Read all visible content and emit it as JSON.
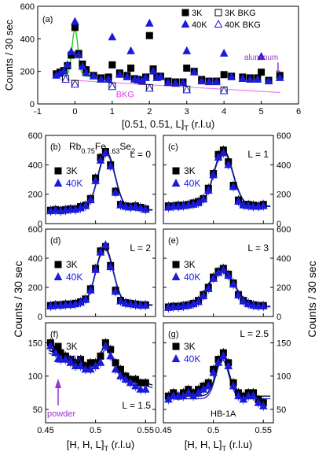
{
  "chart_data": [
    {
      "panel": "a",
      "type": "scatter",
      "panel_label": "(a)",
      "xlabel": "[0.51, 0.51, L]",
      "xlabel_sub": "T",
      "xlabel_unit": " (r.l.u)",
      "ylabel": "Counts / 30 sec",
      "xlim": [
        -1,
        6
      ],
      "ylim": [
        0,
        600
      ],
      "xticks": [
        -1,
        0,
        1,
        2,
        3,
        4,
        5,
        6
      ],
      "yticks": [
        0,
        200,
        400,
        600
      ],
      "series": [
        {
          "name": "3K",
          "marker": "square-filled",
          "color": "#000000",
          "x": [
            -0.5,
            -0.4,
            -0.3,
            -0.2,
            -0.1,
            0.0,
            0.1,
            0.2,
            0.3,
            0.5,
            0.7,
            0.9,
            1.0,
            1.2,
            1.4,
            1.5,
            1.6,
            1.7,
            1.8,
            1.9,
            2.0,
            2.1,
            2.2,
            2.3,
            2.5,
            2.7,
            2.9,
            3.0,
            3.2,
            3.4,
            3.6,
            3.8,
            4.0,
            4.2,
            4.5,
            4.7,
            4.9,
            5.0,
            5.2,
            5.5
          ],
          "y": [
            185,
            195,
            205,
            235,
            300,
            470,
            310,
            245,
            210,
            175,
            160,
            165,
            240,
            190,
            175,
            220,
            155,
            150,
            140,
            165,
            420,
            215,
            170,
            170,
            140,
            135,
            135,
            220,
            200,
            150,
            140,
            140,
            180,
            170,
            165,
            160,
            160,
            195,
            145,
            175
          ]
        },
        {
          "name": "40K",
          "marker": "triangle-filled",
          "color": "#1a1adc",
          "x": [
            -0.5,
            -0.4,
            -0.3,
            -0.2,
            -0.1,
            0.0,
            0.1,
            0.2,
            0.3,
            0.5,
            0.7,
            0.9,
            1.0,
            1.2,
            1.4,
            1.5,
            1.6,
            1.7,
            1.8,
            1.9,
            2.0,
            2.1,
            2.2,
            2.3,
            2.5,
            2.7,
            2.9,
            3.0,
            3.2,
            3.4,
            3.6,
            3.8,
            4.0,
            4.2,
            4.5,
            4.7,
            4.9,
            5.0,
            5.2,
            5.5
          ],
          "y": [
            175,
            185,
            200,
            240,
            320,
            505,
            300,
            230,
            190,
            170,
            150,
            150,
            410,
            180,
            165,
            325,
            150,
            145,
            140,
            160,
            495,
            200,
            160,
            165,
            130,
            125,
            130,
            325,
            195,
            140,
            135,
            135,
            310,
            165,
            155,
            150,
            150,
            290,
            140,
            160
          ]
        },
        {
          "name": "3K BKG",
          "marker": "square-open",
          "color": "#000000",
          "x": [
            -0.25,
            0.0,
            1.0,
            2.0,
            3.0,
            4.0
          ],
          "y": [
            155,
            125,
            110,
            100,
            90,
            85
          ]
        },
        {
          "name": "40K BKG",
          "marker": "triangle-open",
          "color": "#1a1adc",
          "x": [
            -0.25,
            0.0,
            1.0,
            2.0,
            3.0,
            4.0
          ],
          "y": [
            150,
            120,
            105,
            95,
            85,
            80
          ]
        }
      ],
      "annotations": [
        {
          "text": "BKG",
          "color": "#e040e0",
          "x": 1.1,
          "y": 85
        },
        {
          "text": "aluminum",
          "color": "#9933cc",
          "x": 5.2,
          "y": 300
        }
      ],
      "legend": [
        "3K",
        "3K BKG",
        "40K",
        "40K BKG"
      ],
      "legend_position": "top-right"
    },
    {
      "panel": "b",
      "type": "scatter",
      "panel_label": "(b)",
      "title": "Rb",
      "title_sub1": "0.75",
      "title_mid": "Fe",
      "title_sub2": "1.63",
      "title_tail": "Se",
      "title_sub3": "2",
      "L_label": "L = 0",
      "xlim": [
        0.45,
        0.56
      ],
      "ylim": [
        0,
        600
      ],
      "yticks": [
        0,
        200,
        400,
        600
      ],
      "series": [
        {
          "name": "3K",
          "x": [
            0.455,
            0.46,
            0.465,
            0.47,
            0.475,
            0.48,
            0.485,
            0.49,
            0.495,
            0.5,
            0.505,
            0.51,
            0.515,
            0.52,
            0.525,
            0.53,
            0.535,
            0.54,
            0.545,
            0.55
          ],
          "y": [
            90,
            95,
            90,
            95,
            100,
            100,
            115,
            125,
            170,
            310,
            450,
            490,
            400,
            220,
            130,
            120,
            115,
            120,
            110,
            100
          ]
        },
        {
          "name": "40K",
          "x": [
            0.455,
            0.46,
            0.465,
            0.47,
            0.475,
            0.48,
            0.485,
            0.49,
            0.495,
            0.5,
            0.505,
            0.51,
            0.515,
            0.52,
            0.525,
            0.53,
            0.535,
            0.54,
            0.545,
            0.55
          ],
          "y": [
            85,
            90,
            85,
            90,
            95,
            95,
            105,
            120,
            160,
            290,
            430,
            480,
            390,
            210,
            125,
            115,
            110,
            115,
            105,
            95
          ]
        }
      ],
      "fit": {
        "base": 95,
        "amp": 390,
        "center": 0.511,
        "width": 0.0085
      }
    },
    {
      "panel": "c",
      "type": "scatter",
      "panel_label": "(c)",
      "L_label": "L = 1",
      "xlim": [
        0.45,
        0.56
      ],
      "ylim": [
        0,
        600
      ],
      "yticks": [
        0,
        200,
        400,
        600
      ],
      "series": [
        {
          "name": "3K",
          "x": [
            0.455,
            0.46,
            0.465,
            0.47,
            0.475,
            0.48,
            0.485,
            0.49,
            0.495,
            0.5,
            0.505,
            0.51,
            0.515,
            0.52,
            0.525,
            0.53,
            0.535,
            0.54,
            0.545,
            0.55
          ],
          "y": [
            120,
            120,
            125,
            125,
            130,
            140,
            150,
            170,
            240,
            340,
            470,
            500,
            420,
            260,
            160,
            130,
            130,
            125,
            120,
            130
          ]
        },
        {
          "name": "40K",
          "x": [
            0.455,
            0.46,
            0.465,
            0.47,
            0.475,
            0.48,
            0.485,
            0.49,
            0.495,
            0.5,
            0.505,
            0.51,
            0.515,
            0.52,
            0.525,
            0.53,
            0.535,
            0.54,
            0.545,
            0.55
          ],
          "y": [
            110,
            115,
            115,
            120,
            125,
            130,
            140,
            165,
            225,
            330,
            450,
            480,
            400,
            250,
            150,
            125,
            120,
            115,
            115,
            120
          ]
        }
      ],
      "fit": {
        "base": 120,
        "amp": 380,
        "center": 0.51,
        "width": 0.0095
      }
    },
    {
      "panel": "d",
      "type": "scatter",
      "panel_label": "(d)",
      "L_label": "L = 2",
      "xlim": [
        0.45,
        0.56
      ],
      "ylim": [
        0,
        600
      ],
      "yticks": [
        0,
        200,
        400,
        600
      ],
      "series": [
        {
          "name": "3K",
          "x": [
            0.455,
            0.46,
            0.465,
            0.47,
            0.475,
            0.48,
            0.485,
            0.49,
            0.495,
            0.5,
            0.505,
            0.51,
            0.515,
            0.52,
            0.525,
            0.53,
            0.535,
            0.54,
            0.545,
            0.55
          ],
          "y": [
            75,
            80,
            80,
            85,
            85,
            90,
            100,
            120,
            190,
            330,
            450,
            480,
            350,
            180,
            110,
            95,
            90,
            85,
            80,
            80
          ]
        },
        {
          "name": "40K",
          "x": [
            0.455,
            0.46,
            0.465,
            0.47,
            0.475,
            0.48,
            0.485,
            0.49,
            0.495,
            0.5,
            0.505,
            0.51,
            0.515,
            0.52,
            0.525,
            0.53,
            0.535,
            0.54,
            0.545,
            0.55
          ],
          "y": [
            70,
            75,
            75,
            80,
            80,
            85,
            95,
            115,
            180,
            320,
            440,
            490,
            340,
            170,
            105,
            90,
            85,
            80,
            75,
            75
          ]
        }
      ],
      "fit": {
        "base": 80,
        "amp": 400,
        "center": 0.509,
        "width": 0.0085
      }
    },
    {
      "panel": "e",
      "type": "scatter",
      "panel_label": "(e)",
      "L_label": "L = 3",
      "xlim": [
        0.45,
        0.56
      ],
      "ylim": [
        0,
        600
      ],
      "yticks": [
        0,
        200,
        400,
        600
      ],
      "series": [
        {
          "name": "3K",
          "x": [
            0.455,
            0.46,
            0.465,
            0.47,
            0.475,
            0.48,
            0.485,
            0.49,
            0.495,
            0.5,
            0.505,
            0.51,
            0.515,
            0.52,
            0.525,
            0.53,
            0.535,
            0.54,
            0.545,
            0.55
          ],
          "y": [
            65,
            70,
            70,
            75,
            80,
            90,
            110,
            150,
            200,
            270,
            310,
            330,
            290,
            230,
            150,
            110,
            90,
            80,
            75,
            75
          ]
        },
        {
          "name": "40K",
          "x": [
            0.455,
            0.46,
            0.465,
            0.47,
            0.475,
            0.48,
            0.485,
            0.49,
            0.495,
            0.5,
            0.505,
            0.51,
            0.515,
            0.52,
            0.525,
            0.53,
            0.535,
            0.54,
            0.545,
            0.55
          ],
          "y": [
            60,
            65,
            65,
            70,
            75,
            85,
            100,
            140,
            190,
            260,
            300,
            320,
            280,
            220,
            145,
            105,
            85,
            75,
            70,
            70
          ]
        }
      ],
      "fit": {
        "base": 70,
        "amp": 245,
        "center": 0.508,
        "width": 0.013
      }
    },
    {
      "panel": "f",
      "type": "scatter",
      "panel_label": "(f)",
      "L_label": "L = 1.5",
      "xlabel": "[H, H, L]",
      "xlabel_sub": "T",
      "xlabel_unit": " (r.l.u)",
      "xlim": [
        0.45,
        0.56
      ],
      "ylim": [
        30,
        180
      ],
      "xticks": [
        0.45,
        0.5,
        0.55
      ],
      "yticks": [
        50,
        100,
        150
      ],
      "series": [
        {
          "name": "3K",
          "x": [
            0.455,
            0.46,
            0.465,
            0.47,
            0.475,
            0.48,
            0.485,
            0.49,
            0.495,
            0.5,
            0.505,
            0.51,
            0.515,
            0.52,
            0.525,
            0.53,
            0.535,
            0.54,
            0.545,
            0.55
          ],
          "y": [
            150,
            140,
            135,
            130,
            125,
            120,
            125,
            115,
            120,
            120,
            130,
            150,
            140,
            120,
            110,
            100,
            95,
            95,
            90,
            90
          ]
        },
        {
          "name": "40K",
          "x": [
            0.455,
            0.46,
            0.465,
            0.47,
            0.475,
            0.48,
            0.485,
            0.49,
            0.495,
            0.5,
            0.505,
            0.51,
            0.515,
            0.52,
            0.525,
            0.53,
            0.535,
            0.54,
            0.545,
            0.55
          ],
          "y": [
            145,
            135,
            125,
            125,
            120,
            115,
            115,
            110,
            110,
            115,
            120,
            145,
            130,
            110,
            100,
            95,
            90,
            85,
            80,
            80
          ]
        }
      ],
      "annotations": [
        {
          "text": "powder",
          "color": "#9933cc"
        }
      ],
      "fit": {
        "base_start": 140,
        "base_end": 85,
        "amp": 35,
        "center": 0.511,
        "width": 0.006
      }
    },
    {
      "panel": "g",
      "type": "scatter",
      "panel_label": "(g)",
      "L_label": "L = 2.5",
      "xlabel": "[H, H, L]",
      "xlabel_sub": "T",
      "xlabel_unit": " (r.l.u)",
      "xlim": [
        0.45,
        0.56
      ],
      "ylim": [
        30,
        180
      ],
      "xticks": [
        0.45,
        0.5,
        0.55
      ],
      "yticks": [
        50,
        100,
        150
      ],
      "series": [
        {
          "name": "3K",
          "x": [
            0.455,
            0.46,
            0.465,
            0.47,
            0.475,
            0.48,
            0.485,
            0.49,
            0.495,
            0.5,
            0.505,
            0.51,
            0.515,
            0.52,
            0.525,
            0.53,
            0.535,
            0.54,
            0.545,
            0.55
          ],
          "y": [
            70,
            75,
            70,
            75,
            80,
            75,
            80,
            85,
            90,
            110,
            125,
            135,
            120,
            90,
            75,
            70,
            75,
            75,
            65,
            60
          ]
        },
        {
          "name": "40K",
          "x": [
            0.455,
            0.46,
            0.465,
            0.47,
            0.475,
            0.48,
            0.485,
            0.49,
            0.495,
            0.5,
            0.505,
            0.51,
            0.515,
            0.52,
            0.525,
            0.53,
            0.535,
            0.54,
            0.545,
            0.55
          ],
          "y": [
            65,
            70,
            70,
            70,
            75,
            70,
            75,
            80,
            85,
            105,
            120,
            130,
            115,
            85,
            70,
            65,
            70,
            70,
            60,
            55
          ]
        }
      ],
      "annotations": [
        {
          "text": "HB-1A"
        }
      ],
      "fit": {
        "base": 70,
        "amp": 60,
        "center": 0.509,
        "width": 0.0065
      }
    }
  ],
  "shared": {
    "ylabel": "Counts / 30 sec",
    "legend_3k": "3K",
    "legend_40k": "40K"
  }
}
